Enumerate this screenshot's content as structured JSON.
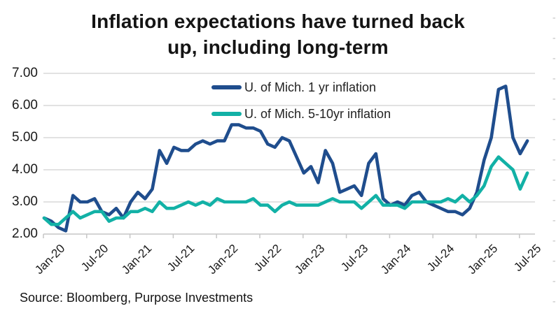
{
  "header": {
    "title_line1": "Inflation expectations have turned back",
    "title_line2": "up, including long-term"
  },
  "footer": {
    "source": "Source: Bloomberg, Purpose Investments"
  },
  "chart_data": {
    "type": "line",
    "title": "Inflation expectations have turned back up, including long-term",
    "x_frequency": "monthly",
    "x_start": "Jan-20",
    "x_end": "Aug-25",
    "x_tick_labels": [
      "Jan-20",
      "Jul-20",
      "Jan-21",
      "Jul-21",
      "Jan-22",
      "Jul-22",
      "Jan-23",
      "Jul-23",
      "Jan-24",
      "Jul-24",
      "Jan-25",
      "Jul-25"
    ],
    "y_tick_labels": [
      "7.00",
      "6.00",
      "5.00",
      "4.00",
      "3.00",
      "2.00"
    ],
    "ylim": [
      2.0,
      7.0
    ],
    "grid": "horizontal",
    "legend_position": "top-center-inside",
    "colors": {
      "series_1yr": "#1f4d8d",
      "series_5_10yr": "#12b1a6",
      "gridline": "#d9d9d9",
      "axis": "#c6c6c6",
      "text": "#1a1a1a"
    },
    "series": [
      {
        "name": "U. of Mich. 1 yr inflation",
        "color": "#1f4d8d",
        "values": [
          2.5,
          2.4,
          2.2,
          2.1,
          3.2,
          3.0,
          3.0,
          3.1,
          2.7,
          2.6,
          2.8,
          2.5,
          3.0,
          3.3,
          3.1,
          3.4,
          4.6,
          4.2,
          4.7,
          4.6,
          4.6,
          4.8,
          4.9,
          4.8,
          4.9,
          4.9,
          5.4,
          5.4,
          5.3,
          5.3,
          5.2,
          4.8,
          4.7,
          5.0,
          4.9,
          4.4,
          3.9,
          4.1,
          3.6,
          4.6,
          4.2,
          3.3,
          3.4,
          3.5,
          3.2,
          4.2,
          4.5,
          3.1,
          2.9,
          3.0,
          2.9,
          3.2,
          3.3,
          3.0,
          2.9,
          2.8,
          2.7,
          2.7,
          2.6,
          2.8,
          3.3,
          4.3,
          5.0,
          6.5,
          6.6,
          5.0,
          4.5,
          4.9
        ]
      },
      {
        "name": "U. of Mich. 5-10yr inflation",
        "color": "#12b1a6",
        "values": [
          2.5,
          2.3,
          2.3,
          2.5,
          2.7,
          2.5,
          2.6,
          2.7,
          2.7,
          2.4,
          2.5,
          2.5,
          2.7,
          2.7,
          2.8,
          2.7,
          3.0,
          2.8,
          2.8,
          2.9,
          3.0,
          2.9,
          3.0,
          2.9,
          3.1,
          3.0,
          3.0,
          3.0,
          3.0,
          3.1,
          2.9,
          2.9,
          2.7,
          2.9,
          3.0,
          2.9,
          2.9,
          2.9,
          2.9,
          3.0,
          3.1,
          3.0,
          3.0,
          3.0,
          2.8,
          3.0,
          3.2,
          2.9,
          2.9,
          2.9,
          2.8,
          3.0,
          3.0,
          3.0,
          3.0,
          3.0,
          3.1,
          3.0,
          3.2,
          3.0,
          3.2,
          3.5,
          4.1,
          4.4,
          4.2,
          4.0,
          3.4,
          3.9
        ]
      }
    ]
  }
}
